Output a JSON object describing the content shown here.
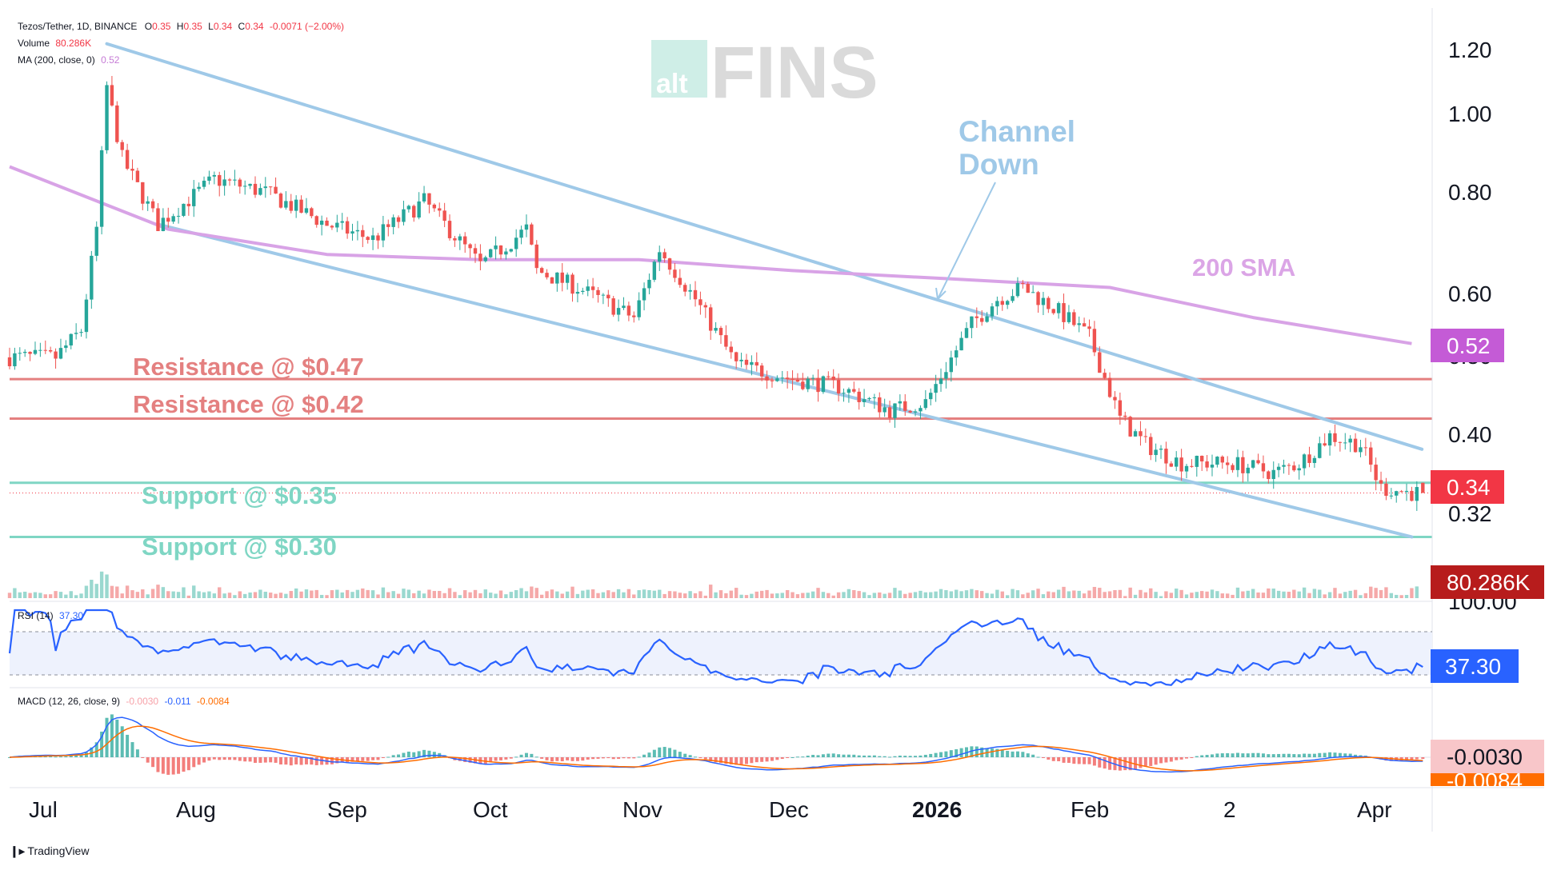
{
  "header": {
    "symbol": "Tezos/Tether, 1D, BINANCE",
    "o_label": "O",
    "o_value": "0.35",
    "h_label": "H",
    "h_value": "0.35",
    "l_label": "L",
    "l_value": "0.34",
    "c_label": "C",
    "c_value": "0.34",
    "change": "-0.0071 (−2.00%)",
    "volume_label": "Volume",
    "volume_value": "80.286K",
    "ma_label": "MA (200, close, 0)",
    "ma_value": "0.52"
  },
  "watermark": {
    "alt": "alt",
    "fins": "FINS"
  },
  "annotations": {
    "channel": [
      "Channel",
      "Down"
    ],
    "sma": "200 SMA",
    "resistance_047": "Resistance @ $0.47",
    "resistance_042": "Resistance @ $0.42",
    "support_035": "Support @ $0.35",
    "support_030": "Support @ $0.30"
  },
  "price_axis": {
    "ticks": [
      "1.20",
      "1.00",
      "0.80",
      "0.60",
      "0.50",
      "0.40",
      "0.32",
      "100.00"
    ],
    "ma_badge": "0.52",
    "price_badge": "0.34",
    "volume_badge": "80.286K",
    "rsi_badge": "37.30",
    "macd_badge": "-0.0030",
    "macd_signal_badge": "-0.0084"
  },
  "time_axis": [
    "Jul",
    "Aug",
    "Sep",
    "Oct",
    "Nov",
    "Dec",
    "2026",
    "Feb",
    "2",
    "Apr"
  ],
  "rsi": {
    "label": "RSI (14)",
    "value": "37.30"
  },
  "macd": {
    "label": "MACD (12, 26, close, 9)",
    "hist": "-0.0030",
    "macd": "-0.011",
    "signal": "-0.0084"
  },
  "branding": "TradingView",
  "colors": {
    "up": "#26a69a",
    "down": "#ef5350",
    "ma": "#c67cd6",
    "channel": "#9fc9e8",
    "resistance": "#e48080",
    "support": "#7fd6c4",
    "rsi": "#2962ff",
    "macd": "#2962ff",
    "signal": "#ff6d00"
  },
  "chart_data": {
    "type": "candlestick",
    "scale": "log",
    "ylim": [
      0.27,
      1.27
    ],
    "x_range": [
      "2025-07-01",
      "2026-04-05"
    ],
    "anchors": [
      [
        "2025-07-01",
        0.5
      ],
      [
        "2025-07-10",
        0.5
      ],
      [
        "2025-07-15",
        0.54
      ],
      [
        "2025-07-18",
        0.72
      ],
      [
        "2025-07-20",
        1.08
      ],
      [
        "2025-07-23",
        0.88
      ],
      [
        "2025-07-30",
        0.73
      ],
      [
        "2025-08-10",
        0.83
      ],
      [
        "2025-08-20",
        0.8
      ],
      [
        "2025-09-01",
        0.73
      ],
      [
        "2025-09-10",
        0.7
      ],
      [
        "2025-09-20",
        0.78
      ],
      [
        "2025-10-01",
        0.65
      ],
      [
        "2025-10-10",
        0.72
      ],
      [
        "2025-10-12",
        0.64
      ],
      [
        "2025-10-20",
        0.61
      ],
      [
        "2025-10-31",
        0.56
      ],
      [
        "2025-11-05",
        0.68
      ],
      [
        "2025-11-12",
        0.59
      ],
      [
        "2025-11-20",
        0.49
      ],
      [
        "2025-12-01",
        0.47
      ],
      [
        "2025-12-10",
        0.46
      ],
      [
        "2025-12-20",
        0.43
      ],
      [
        "2025-12-27",
        0.44
      ],
      [
        "2026-01-05",
        0.55
      ],
      [
        "2026-01-10",
        0.59
      ],
      [
        "2026-01-15",
        0.61
      ],
      [
        "2026-01-22",
        0.57
      ],
      [
        "2026-01-28",
        0.53
      ],
      [
        "2026-02-03",
        0.42
      ],
      [
        "2026-02-08",
        0.39
      ],
      [
        "2026-02-15",
        0.37
      ],
      [
        "2026-02-25",
        0.37
      ],
      [
        "2026-03-05",
        0.36
      ],
      [
        "2026-03-10",
        0.37
      ],
      [
        "2026-03-16",
        0.4
      ],
      [
        "2026-03-22",
        0.39
      ],
      [
        "2026-03-26",
        0.345
      ],
      [
        "2026-04-01",
        0.34
      ]
    ],
    "sma_200": [
      [
        "2025-07-01",
        0.86
      ],
      [
        "2025-08-01",
        0.72
      ],
      [
        "2025-09-01",
        0.67
      ],
      [
        "2025-10-01",
        0.66
      ],
      [
        "2025-11-01",
        0.66
      ],
      [
        "2025-12-01",
        0.64
      ],
      [
        "2026-01-01",
        0.625
      ],
      [
        "2026-02-01",
        0.61
      ],
      [
        "2026-03-01",
        0.56
      ],
      [
        "2026-04-01",
        0.52
      ]
    ],
    "channel_upper": [
      [
        "2025-07-20",
        1.22
      ],
      [
        "2026-04-03",
        0.385
      ]
    ],
    "channel_lower": [
      [
        "2025-07-30",
        0.73
      ],
      [
        "2026-04-01",
        0.3
      ]
    ],
    "levels": {
      "resistance": [
        0.47,
        0.42
      ],
      "support": [
        0.35,
        0.3
      ]
    },
    "last": {
      "open": 0.35,
      "high": 0.35,
      "low": 0.34,
      "close": 0.34,
      "volume": "80.286K"
    },
    "rsi_levels": [
      70,
      30
    ],
    "rsi_last": 37.3,
    "macd_last": {
      "hist": -0.003,
      "macd": -0.011,
      "signal": -0.0084
    }
  }
}
